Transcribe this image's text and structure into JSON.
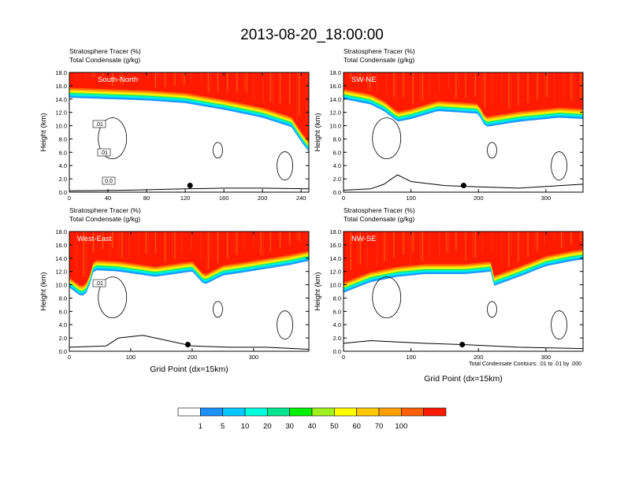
{
  "title": "2013-08-20_18:00:00",
  "colorbar": {
    "labels": [
      "1",
      "5",
      "10",
      "20",
      "30",
      "40",
      "50",
      "60",
      "70",
      "100"
    ],
    "colors": [
      "#ffffff",
      "#1e90ff",
      "#00c8ff",
      "#00ffdc",
      "#00e68c",
      "#00f000",
      "#a0f020",
      "#ffff00",
      "#ffc800",
      "#ffa000",
      "#ff6000",
      "#ff1a00"
    ]
  },
  "footnote": "Total Condensate Contours: .01 to .01 by .000",
  "chart_data": [
    {
      "type": "contour",
      "panel_label": "South-North",
      "title_left_1": "Stratosphere Tracer   (%)",
      "title_left_2": "Total Condensate   (g/kg)",
      "ylabel": "Height (km)",
      "xlabel": "",
      "xlim": [
        0,
        248
      ],
      "ylim": [
        0,
        18
      ],
      "xticks": [
        0,
        40,
        80,
        120,
        160,
        200,
        240
      ],
      "yticks": [
        "0.0",
        "2.0",
        "4.0",
        "6.0",
        "8.0",
        "10.0",
        "12.0",
        "14.0",
        "16.0",
        "18.0"
      ],
      "contour_labels": [
        ".01",
        ".01",
        "0.0"
      ],
      "tropopause_km": [
        [
          0,
          14.6
        ],
        [
          40,
          14.4
        ],
        [
          80,
          14.2
        ],
        [
          120,
          13.8
        ],
        [
          160,
          12.8
        ],
        [
          200,
          11.6
        ],
        [
          230,
          10.2
        ],
        [
          240,
          8.0
        ],
        [
          248,
          6.5
        ]
      ],
      "terrain_km": [
        [
          0,
          0.2
        ],
        [
          60,
          0.3
        ],
        [
          120,
          0.5
        ],
        [
          160,
          0.6
        ],
        [
          200,
          0.6
        ],
        [
          248,
          0.5
        ]
      ],
      "marker_x": 125
    },
    {
      "type": "contour",
      "panel_label": "SW-NE",
      "title_left_1": "Stratosphere Tracer   (%)",
      "title_left_2": "Total Condensate   (g/kg)",
      "ylabel": "Height (km)",
      "xlabel": "",
      "xlim": [
        0,
        355
      ],
      "ylim": [
        0,
        18
      ],
      "xticks": [
        0,
        100,
        200,
        300
      ],
      "yticks": [
        "0.0",
        "2.0",
        "4.0",
        "6.0",
        "8.0",
        "10.0",
        "12.0",
        "14.0",
        "16.0",
        "18.0"
      ],
      "contour_labels": [],
      "tropopause_km": [
        [
          0,
          14.4
        ],
        [
          40,
          13.6
        ],
        [
          60,
          12.6
        ],
        [
          80,
          11.0
        ],
        [
          100,
          11.4
        ],
        [
          140,
          12.6
        ],
        [
          200,
          12.2
        ],
        [
          210,
          10.2
        ],
        [
          260,
          11.0
        ],
        [
          320,
          11.6
        ],
        [
          355,
          11.4
        ]
      ],
      "terrain_km": [
        [
          0,
          0.3
        ],
        [
          40,
          0.5
        ],
        [
          60,
          1.2
        ],
        [
          80,
          2.6
        ],
        [
          100,
          1.6
        ],
        [
          150,
          1.0
        ],
        [
          200,
          0.8
        ],
        [
          260,
          0.6
        ],
        [
          355,
          1.2
        ]
      ],
      "marker_x": 178
    },
    {
      "type": "contour",
      "panel_label": "West-East",
      "title_left_1": "Stratosphere Tracer   (%)",
      "title_left_2": "Total Condensate   (g/kg)",
      "ylabel": "Height (km)",
      "xlabel": "Grid Point (dx=15km)",
      "xlim": [
        0,
        390
      ],
      "ylim": [
        0,
        18
      ],
      "xticks": [
        0,
        100,
        200,
        300
      ],
      "yticks": [
        "0.0",
        "2.0",
        "4.0",
        "6.0",
        "8.0",
        "10.0",
        "12.0",
        "14.0",
        "16.0",
        "18.0"
      ],
      "contour_labels": [
        ".01"
      ],
      "tropopause_km": [
        [
          0,
          10.0
        ],
        [
          20,
          8.6
        ],
        [
          30,
          9.4
        ],
        [
          40,
          12.6
        ],
        [
          80,
          12.4
        ],
        [
          140,
          11.6
        ],
        [
          200,
          12.4
        ],
        [
          220,
          10.4
        ],
        [
          250,
          11.8
        ],
        [
          280,
          12.2
        ],
        [
          320,
          12.8
        ],
        [
          360,
          13.4
        ],
        [
          390,
          14.0
        ]
      ],
      "terrain_km": [
        [
          0,
          0.6
        ],
        [
          60,
          0.8
        ],
        [
          80,
          2.0
        ],
        [
          120,
          2.4
        ],
        [
          160,
          1.6
        ],
        [
          200,
          0.8
        ],
        [
          260,
          0.6
        ],
        [
          320,
          0.6
        ],
        [
          390,
          0.3
        ]
      ],
      "marker_x": 193
    },
    {
      "type": "contour",
      "panel_label": "NW-SE",
      "title_left_1": "Stratosphere Tracer   (%)",
      "title_left_2": "Total Condensate   (g/kg)",
      "ylabel": "Height (km)",
      "xlabel": "Grid Point (dx=15km)",
      "xlim": [
        0,
        355
      ],
      "ylim": [
        0,
        18
      ],
      "xticks": [
        0,
        100,
        200,
        300
      ],
      "yticks": [
        "0.0",
        "2.0",
        "4.0",
        "6.0",
        "8.0",
        "10.0",
        "12.0",
        "14.0",
        "16.0",
        "18.0"
      ],
      "contour_labels": [],
      "tropopause_km": [
        [
          0,
          9.2
        ],
        [
          40,
          10.8
        ],
        [
          80,
          11.6
        ],
        [
          120,
          12.0
        ],
        [
          180,
          12.0
        ],
        [
          220,
          12.4
        ],
        [
          222,
          10.2
        ],
        [
          260,
          11.6
        ],
        [
          300,
          13.2
        ],
        [
          340,
          14.0
        ],
        [
          355,
          14.2
        ]
      ],
      "terrain_km": [
        [
          0,
          1.2
        ],
        [
          40,
          1.6
        ],
        [
          80,
          1.4
        ],
        [
          120,
          1.2
        ],
        [
          180,
          1.0
        ],
        [
          220,
          0.8
        ],
        [
          260,
          0.6
        ],
        [
          355,
          0.4
        ]
      ],
      "marker_x": 176
    }
  ]
}
